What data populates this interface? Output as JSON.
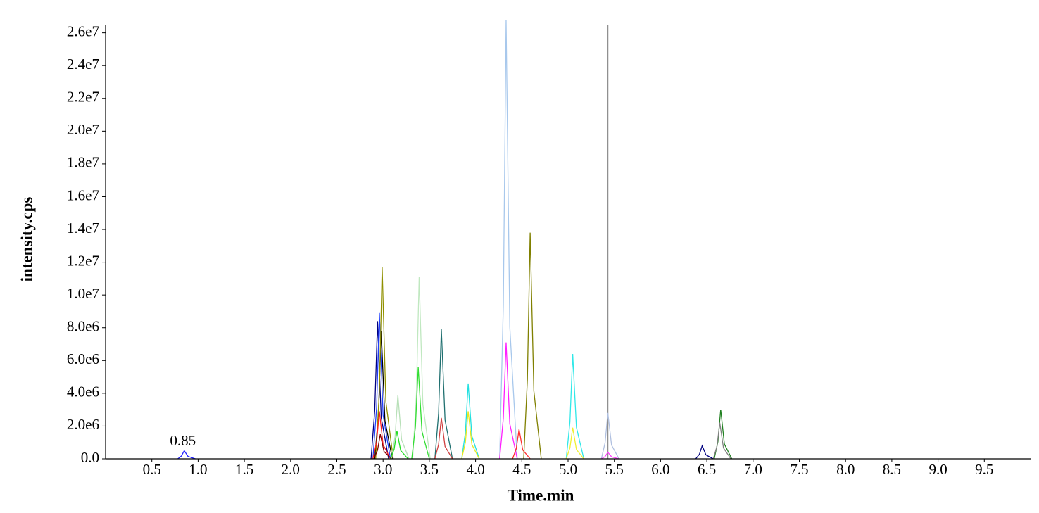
{
  "chart_data": {
    "type": "line",
    "xlabel": "Time.min",
    "ylabel": "intensity.cps",
    "xlim": [
      0,
      10.0
    ],
    "ylim": [
      0,
      26500000
    ],
    "xticks": [
      0.5,
      {
        "value": 1,
        "label": "1.0"
      },
      1.5,
      {
        "value": 2,
        "label": "2.0"
      },
      2.5,
      {
        "value": 3,
        "label": "3.0"
      },
      3.5,
      {
        "value": 4,
        "label": "4.0"
      },
      4.5,
      {
        "value": 5,
        "label": "5.0"
      },
      5.5,
      {
        "value": 6,
        "label": "6.0"
      },
      6.5,
      {
        "value": 7,
        "label": "7.0"
      },
      7.5,
      {
        "value": 8,
        "label": "8.0"
      },
      8.5,
      {
        "value": 9,
        "label": "9.0"
      },
      9.5
    ],
    "yticks": [
      {
        "value": 0,
        "label": "0.0"
      },
      {
        "value": 2000000,
        "label": "2.0e6"
      },
      {
        "value": 4000000,
        "label": "4.0e6"
      },
      {
        "value": 6000000,
        "label": "6.0e6"
      },
      {
        "value": 8000000,
        "label": "8.0e6"
      },
      {
        "value": 10000000,
        "label": "1.0e7"
      },
      {
        "value": 12000000,
        "label": "1.2e7"
      },
      {
        "value": 14000000,
        "label": "1.4e7"
      },
      {
        "value": 16000000,
        "label": "1.6e7"
      },
      {
        "value": 18000000,
        "label": "1.8e7"
      },
      {
        "value": 20000000,
        "label": "2.0e7"
      },
      {
        "value": 22000000,
        "label": "2.2e7"
      },
      {
        "value": 24000000,
        "label": "2.4e7"
      },
      {
        "value": 26000000,
        "label": "2.6e7"
      }
    ],
    "cursor_x": 5.43,
    "cursor_color": "#909090",
    "annotations": [
      {
        "text": "0.85",
        "x": 0.85
      }
    ],
    "series": [
      {
        "color": "#2020ff",
        "x": [
          0.78,
          0.82,
          0.85,
          0.89,
          0.97
        ],
        "values": [
          0,
          175000,
          500000,
          150000,
          0
        ]
      },
      {
        "color": "#000080",
        "x": [
          2.87,
          2.91,
          2.94,
          2.98,
          3.06
        ],
        "values": [
          0,
          2940000,
          8400000,
          2520000,
          0
        ]
      },
      {
        "color": "#2040ff",
        "x": [
          2.89,
          2.93,
          2.96,
          3.0,
          3.08
        ],
        "values": [
          0,
          3115000,
          8900000,
          2670000,
          0
        ]
      },
      {
        "color": "#000000",
        "x": [
          2.91,
          2.95,
          2.98,
          3.02,
          3.1
        ],
        "values": [
          0,
          2730000,
          7800000,
          2340000,
          0
        ]
      },
      {
        "color": "#909000",
        "x": [
          2.92,
          2.96,
          2.99,
          3.03,
          3.11
        ],
        "values": [
          0,
          4095000,
          11700000,
          3510000,
          0
        ]
      },
      {
        "color": "#ff2020",
        "x": [
          2.89,
          2.93,
          2.96,
          3.0,
          3.08
        ],
        "values": [
          0,
          1015000,
          2900000,
          870000,
          0
        ]
      },
      {
        "color": "#800000",
        "x": [
          2.9,
          2.94,
          2.97,
          3.01,
          3.09
        ],
        "values": [
          0,
          525000,
          1500000,
          450000,
          0
        ]
      },
      {
        "color": "#b8e0b8",
        "x": [
          3.09,
          3.13,
          3.16,
          3.2,
          3.28
        ],
        "values": [
          0,
          1365000,
          3900000,
          1170000,
          0
        ]
      },
      {
        "color": "#22dd22",
        "x": [
          3.08,
          3.12,
          3.15,
          3.19,
          3.27
        ],
        "values": [
          0,
          595000,
          1700000,
          510000,
          0
        ]
      },
      {
        "color": "#c0e8c0",
        "x": [
          3.32,
          3.36,
          3.39,
          3.43,
          3.51
        ],
        "values": [
          0,
          3885000,
          11100000,
          3330000,
          0
        ]
      },
      {
        "color": "#33dd33",
        "x": [
          3.31,
          3.35,
          3.38,
          3.42,
          3.5
        ],
        "values": [
          0,
          1960000,
          5600000,
          1680000,
          0
        ]
      },
      {
        "color": "#207070",
        "x": [
          3.56,
          3.6,
          3.63,
          3.67,
          3.75
        ],
        "values": [
          0,
          2765000,
          7900000,
          2370000,
          0
        ]
      },
      {
        "color": "#d04040",
        "x": [
          3.56,
          3.6,
          3.63,
          3.67,
          3.75
        ],
        "values": [
          0,
          875000,
          2500000,
          750000,
          0
        ]
      },
      {
        "color": "#22e0e0",
        "x": [
          3.85,
          3.89,
          3.92,
          3.96,
          4.04
        ],
        "values": [
          0,
          1610000,
          4600000,
          1380000,
          0
        ]
      },
      {
        "color": "#e8e820",
        "x": [
          3.85,
          3.89,
          3.92,
          3.96,
          4.04
        ],
        "values": [
          0,
          1015000,
          2900000,
          870000,
          0
        ]
      },
      {
        "color": "#a8c8ec",
        "x": [
          4.26,
          4.3,
          4.33,
          4.37,
          4.45
        ],
        "values": [
          0,
          9380000,
          26800000,
          8040000,
          0
        ]
      },
      {
        "color": "#ff20ff",
        "x": [
          4.26,
          4.3,
          4.33,
          4.37,
          4.45
        ],
        "values": [
          0,
          2485000,
          7100000,
          2130000,
          0
        ]
      },
      {
        "color": "#ff3030",
        "x": [
          4.4,
          4.44,
          4.47,
          4.51,
          4.59
        ],
        "values": [
          0,
          630000,
          1800000,
          540000,
          0
        ]
      },
      {
        "color": "#808000",
        "x": [
          4.52,
          4.56,
          4.59,
          4.63,
          4.71
        ],
        "values": [
          0,
          4830000,
          13800000,
          4140000,
          0
        ]
      },
      {
        "color": "#30e8e8",
        "x": [
          4.98,
          5.02,
          5.05,
          5.09,
          5.17
        ],
        "values": [
          0,
          2240000,
          6400000,
          1920000,
          0
        ]
      },
      {
        "color": "#f0f030",
        "x": [
          4.98,
          5.02,
          5.05,
          5.09,
          5.17
        ],
        "values": [
          0,
          665000,
          1900000,
          570000,
          0
        ]
      },
      {
        "color": "#b0c0e0",
        "x": [
          5.36,
          5.4,
          5.43,
          5.47,
          5.55
        ],
        "values": [
          0,
          980000,
          2800000,
          840000,
          0
        ]
      },
      {
        "color": "#ff40ff",
        "x": [
          5.36,
          5.4,
          5.43,
          5.47,
          5.55
        ],
        "values": [
          0,
          140000,
          400000,
          120000,
          0
        ]
      },
      {
        "color": "#000080",
        "x": [
          6.38,
          6.42,
          6.45,
          6.49,
          6.57
        ],
        "values": [
          0,
          280000,
          800000,
          240000,
          0
        ]
      },
      {
        "color": "#208020",
        "x": [
          6.58,
          6.62,
          6.65,
          6.69,
          6.77
        ],
        "values": [
          0,
          1050000,
          3000000,
          900000,
          0
        ]
      },
      {
        "color": "#808080",
        "x": [
          6.57,
          6.61,
          6.64,
          6.68,
          6.76
        ],
        "values": [
          0,
          770000,
          2200000,
          660000,
          0
        ]
      }
    ]
  }
}
